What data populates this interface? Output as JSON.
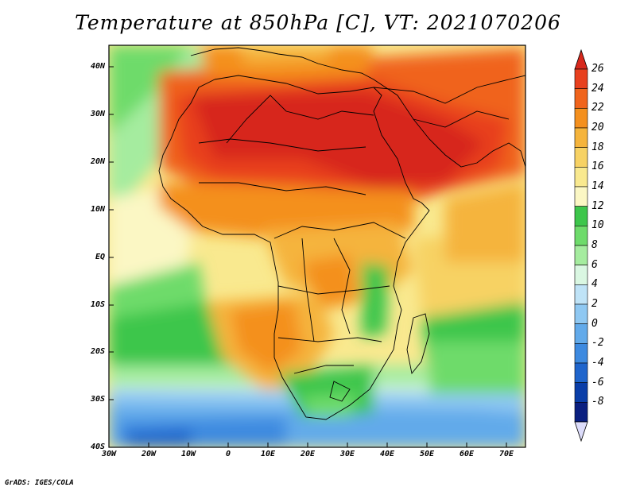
{
  "title": "Temperature at 850hPa [C], VT: 2021070206",
  "credit": "GrADS: IGES/COLA",
  "map": {
    "lat_labels": [
      "40N",
      "30N",
      "20N",
      "10N",
      "EQ",
      "10S",
      "20S",
      "30S",
      "40S"
    ],
    "lon_labels": [
      "30W",
      "20W",
      "10W",
      "0",
      "10E",
      "20E",
      "30E",
      "40E",
      "50E",
      "60E",
      "70E"
    ],
    "lat_range": [
      -40,
      45
    ],
    "lon_range": [
      -30,
      75
    ]
  },
  "colorbar": {
    "labels": [
      "26",
      "24",
      "22",
      "20",
      "18",
      "16",
      "14",
      "12",
      "10",
      "8",
      "6",
      "4",
      "2",
      "0",
      "-2",
      "-4",
      "-6",
      "-8"
    ],
    "colors": [
      "#d7281c",
      "#e8401e",
      "#f0641c",
      "#f4901e",
      "#f5b43c",
      "#f7d264",
      "#f9e98f",
      "#fbf7c4",
      "#3dc64b",
      "#6edb6b",
      "#a5ec9f",
      "#daf7e2",
      "#bfe3f7",
      "#8fc8f2",
      "#62aaea",
      "#3d8ae0",
      "#1f65cc",
      "#0a3ea8",
      "#0a1f80",
      "#dcdcfa"
    ]
  }
}
